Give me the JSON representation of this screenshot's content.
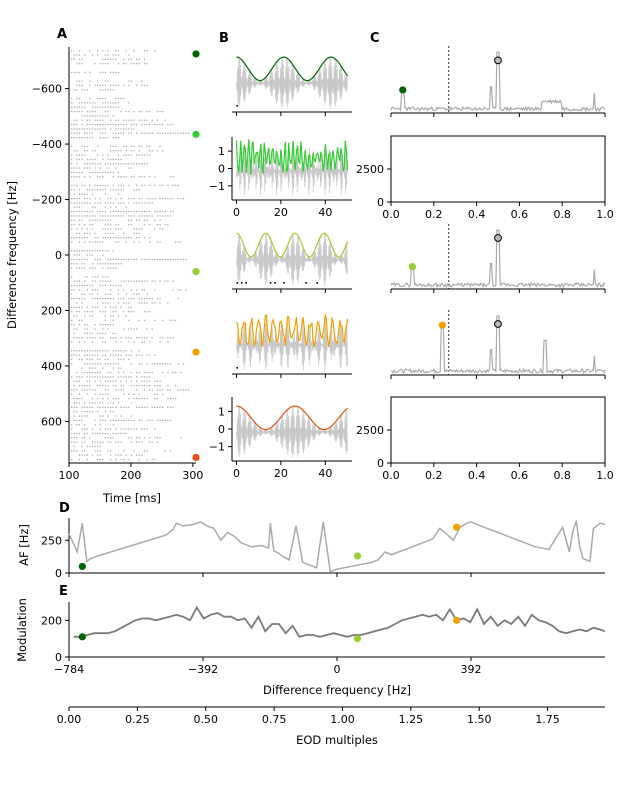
{
  "panel_letters": [
    "A",
    "B",
    "C",
    "D",
    "E"
  ],
  "colors": {
    "grey": "#aaaaaa",
    "lightgrey": "#c8c8c8",
    "darkgrey": "#7a7a7a",
    "c1": "#006400",
    "c2": "#33cc33",
    "c3": "#9acd32",
    "c4": "#f0a000",
    "c5": "#e84e0f"
  },
  "chart_data": [
    {
      "id": "A",
      "type": "scatter",
      "xlabel": "Time [ms]",
      "ylabel": "Difference frequency [Hz]",
      "xlim": [
        100,
        305
      ],
      "ylim": [
        -750,
        750
      ],
      "y_inverted": true,
      "xticks": [
        100,
        200,
        300
      ],
      "yticks": [
        -600,
        -400,
        -200,
        0,
        200,
        400,
        600
      ],
      "xticklabels": [
        "100",
        "200",
        "300"
      ],
      "yticklabels": [
        "−600",
        "−400",
        "−200",
        "0",
        "200",
        "400",
        "600"
      ],
      "markers": [
        {
          "y": -725,
          "color": "c1"
        },
        {
          "y": -435,
          "color": "c2"
        },
        {
          "y": 60,
          "color": "c3"
        },
        {
          "y": 350,
          "color": "c4"
        },
        {
          "y": 730,
          "color": "c5"
        }
      ]
    },
    {
      "id": "B",
      "type": "line",
      "xlim": [
        -2,
        52
      ],
      "ylim": [
        -2,
        2
      ],
      "xticks": [
        0,
        20,
        40
      ],
      "xticklabels": [
        "0",
        "20",
        "40"
      ],
      "yticks": [
        -1,
        0,
        1
      ],
      "yticklabels": [
        "−1",
        "0",
        "1"
      ],
      "rows": [
        {
          "color": "c1",
          "env_freq": 0.047,
          "carrier_freq": 0.8,
          "noise": 0.0,
          "shown_ticks": false
        },
        {
          "color": "c2",
          "env_freq": 0.55,
          "carrier_freq": 0.8,
          "noise": 0.35,
          "shown_ticks": true
        },
        {
          "color": "c3",
          "env_freq": 0.076,
          "carrier_freq": 0.8,
          "noise": 0.0,
          "shown_ticks": false
        },
        {
          "color": "c4",
          "env_freq": 0.3,
          "carrier_freq": 0.8,
          "noise": 0.25,
          "shown_ticks": false
        },
        {
          "color": "c5",
          "env_freq": 0.038,
          "carrier_freq": 0.8,
          "noise": 0.0,
          "shown_ticks": true
        }
      ]
    },
    {
      "id": "C",
      "type": "line",
      "xlim": [
        0,
        1
      ],
      "xticks": [
        0,
        0.2,
        0.4,
        0.6,
        0.8,
        1.0
      ],
      "xticklabels": [
        "0.0",
        "0.2",
        "0.4",
        "0.6",
        "0.8",
        "1.0"
      ],
      "empty_ylim": [
        0,
        5000
      ],
      "empty_yticks": [
        0,
        2500
      ],
      "empty_yticklabels": [
        "0",
        "2500"
      ],
      "vline_x": 0.27,
      "rows": [
        {
          "kind": "spectrum",
          "peak_x": 0.055,
          "peak_color": "c1",
          "vline": true
        },
        {
          "kind": "empty"
        },
        {
          "kind": "spectrum",
          "peak_x": 0.1,
          "peak_color": "c3",
          "vline": true
        },
        {
          "kind": "spectrum",
          "peak_x": 0.24,
          "peak_color": "c4",
          "vline": true
        },
        {
          "kind": "empty"
        }
      ]
    },
    {
      "id": "D",
      "type": "line",
      "ylabel": "AF [Hz]",
      "ylim": [
        0,
        420
      ],
      "yticks": [
        0,
        250
      ],
      "yticklabels": [
        "0",
        "250"
      ],
      "x": [
        -784,
        -760,
        -745,
        -732,
        -720,
        -700,
        -650,
        -600,
        -550,
        -500,
        -480,
        -470,
        -450,
        -420,
        -400,
        -380,
        -360,
        -340,
        -320,
        -300,
        -280,
        -250,
        -220,
        -200,
        -195,
        -185,
        -170,
        -160,
        -140,
        -120,
        -100,
        -80,
        -60,
        -40,
        -20,
        0,
        20,
        40,
        60,
        80,
        100,
        120,
        140,
        160,
        180,
        200,
        220,
        240,
        260,
        280,
        300,
        320,
        340,
        360,
        380,
        392,
        420,
        460,
        500,
        540,
        580,
        620,
        660,
        680,
        690,
        700,
        710,
        720,
        730,
        740,
        750,
        760,
        770,
        784
      ],
      "y": [
        300,
        160,
        380,
        90,
        110,
        130,
        170,
        210,
        250,
        290,
        330,
        380,
        360,
        370,
        390,
        360,
        340,
        250,
        310,
        280,
        230,
        200,
        210,
        190,
        380,
        170,
        150,
        130,
        100,
        360,
        80,
        60,
        40,
        390,
        10,
        30,
        40,
        50,
        60,
        70,
        80,
        100,
        160,
        140,
        160,
        180,
        200,
        220,
        240,
        260,
        340,
        300,
        250,
        350,
        380,
        390,
        360,
        320,
        280,
        240,
        200,
        180,
        350,
        160,
        320,
        400,
        200,
        110,
        100,
        90,
        340,
        360,
        380,
        370
      ],
      "markers": [
        {
          "x": -745,
          "y": 50,
          "color": "c1"
        },
        {
          "x": 60,
          "y": 130,
          "color": "c3"
        },
        {
          "x": 350,
          "y": 350,
          "color": "c4"
        }
      ]
    },
    {
      "id": "E",
      "type": "line",
      "ylabel": "Modulation",
      "xlabel": "Difference frequency [Hz]",
      "xlim": [
        -784,
        784
      ],
      "xticks": [
        -784,
        -392,
        0,
        392
      ],
      "xticklabels": [
        "−784",
        "−392",
        "0",
        "392"
      ],
      "ylim": [
        0,
        300
      ],
      "yticks": [
        0,
        200
      ],
      "yticklabels": [
        "0",
        "200"
      ],
      "x": [
        -770,
        -750,
        -730,
        -710,
        -690,
        -670,
        -650,
        -630,
        -610,
        -590,
        -570,
        -550,
        -530,
        -510,
        -490,
        -470,
        -450,
        -430,
        -410,
        -390,
        -370,
        -350,
        -330,
        -310,
        -290,
        -270,
        -250,
        -230,
        -210,
        -190,
        -170,
        -150,
        -130,
        -110,
        -90,
        -70,
        -50,
        -30,
        -10,
        10,
        30,
        50,
        70,
        90,
        110,
        130,
        150,
        170,
        190,
        210,
        230,
        250,
        270,
        290,
        310,
        330,
        350,
        370,
        390,
        410,
        430,
        450,
        470,
        490,
        510,
        530,
        550,
        570,
        590,
        610,
        630,
        650,
        670,
        690,
        710,
        730,
        750,
        770,
        784
      ],
      "y": [
        110,
        110,
        120,
        130,
        130,
        130,
        140,
        160,
        180,
        200,
        210,
        210,
        200,
        210,
        220,
        230,
        220,
        200,
        270,
        210,
        230,
        240,
        220,
        220,
        200,
        210,
        160,
        220,
        140,
        180,
        180,
        130,
        170,
        110,
        120,
        120,
        110,
        120,
        130,
        120,
        110,
        120,
        120,
        130,
        140,
        150,
        160,
        180,
        200,
        210,
        220,
        230,
        220,
        230,
        200,
        260,
        200,
        210,
        190,
        260,
        180,
        220,
        170,
        200,
        180,
        220,
        170,
        230,
        200,
        190,
        170,
        140,
        130,
        140,
        150,
        140,
        160,
        150,
        140
      ],
      "markers": [
        {
          "x": -745,
          "y": 110,
          "color": "c1"
        },
        {
          "x": 60,
          "y": 100,
          "color": "c3"
        },
        {
          "x": 350,
          "y": 200,
          "color": "c4"
        }
      ]
    },
    {
      "id": "F",
      "type": "axis",
      "xlabel": "EOD multiples",
      "xlim": [
        0,
        1.96
      ],
      "xticks": [
        0,
        0.25,
        0.5,
        0.75,
        1.0,
        1.25,
        1.5,
        1.75
      ],
      "xticklabels": [
        "0.00",
        "0.25",
        "0.50",
        "0.75",
        "1.00",
        "1.25",
        "1.50",
        "1.75"
      ]
    }
  ]
}
